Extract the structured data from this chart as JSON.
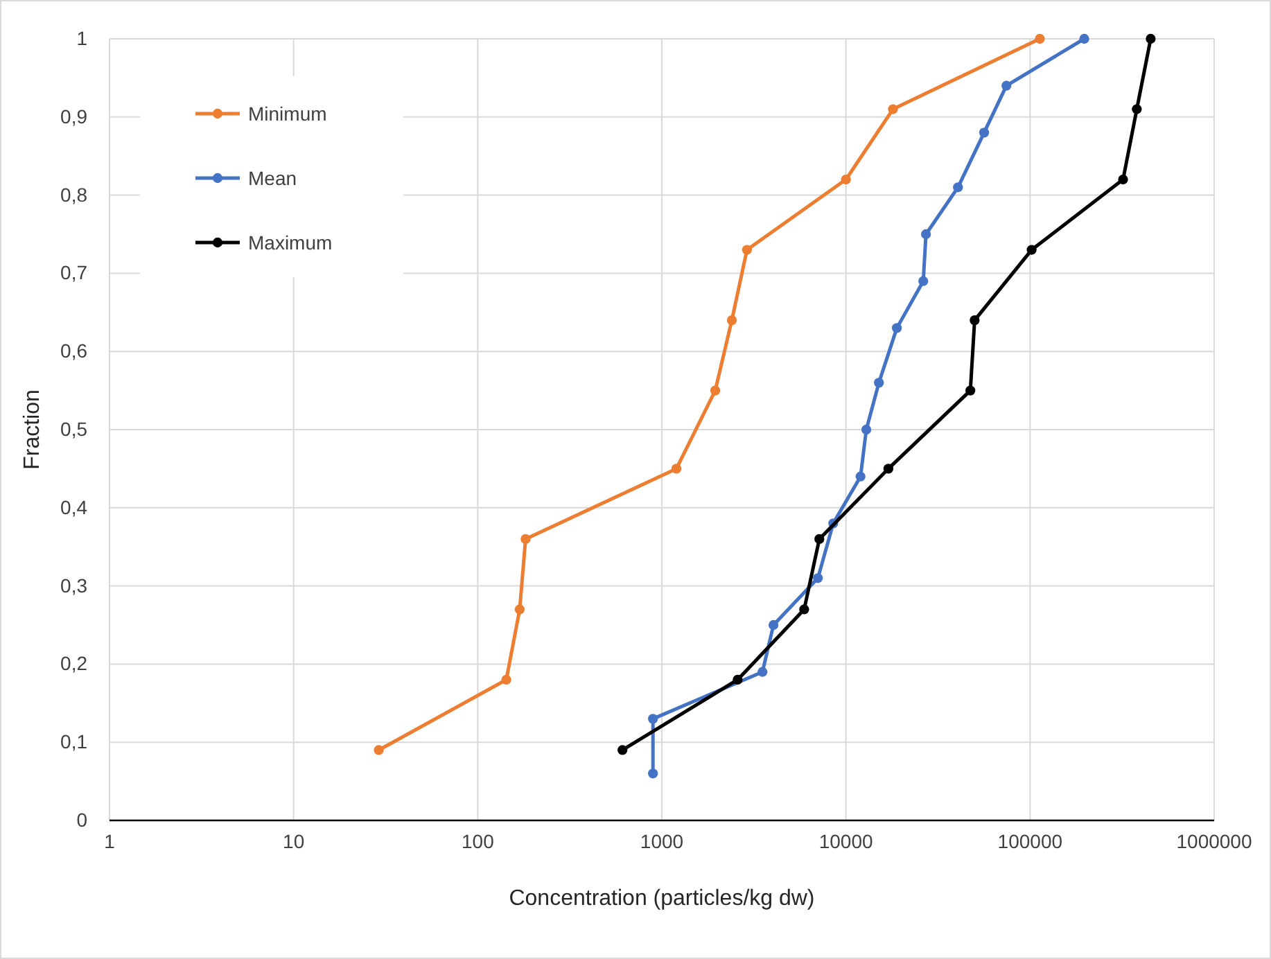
{
  "chart_data": {
    "type": "line",
    "xlabel": "Concentration (particles/kg dw)",
    "ylabel": "Fraction",
    "log": "x",
    "grid": true,
    "legend": "top left",
    "marker": "circle",
    "line_style": "solid",
    "xlim": [
      1,
      1000000
    ],
    "xticks": [
      1,
      10,
      100,
      1000,
      10000,
      100000,
      1000000
    ],
    "ylim": [
      0,
      1
    ],
    "yticks": [
      0,
      {
        "value": 0.1,
        "label": "0,1"
      },
      {
        "value": 0.2,
        "label": "0,2"
      },
      {
        "value": 0.3,
        "label": "0,3"
      },
      {
        "value": 0.4,
        "label": "0,4"
      },
      {
        "value": 0.5,
        "label": "0,5"
      },
      {
        "value": 0.6,
        "label": "0,6"
      },
      {
        "value": 0.7,
        "label": "0,7"
      },
      {
        "value": 0.8,
        "label": "0,8"
      },
      {
        "value": 0.9,
        "label": "0,9"
      },
      1
    ],
    "series": [
      {
        "name": "Minimum",
        "color": "#ed7d31",
        "x": [
          29,
          143,
          169,
          182,
          1200,
          1950,
          2400,
          2900,
          10000,
          18000,
          113000
        ],
        "values": [
          0.09,
          0.18,
          0.27,
          0.36,
          0.45,
          0.55,
          0.64,
          0.73,
          0.82,
          0.91,
          1
        ]
      },
      {
        "name": "Mean",
        "color": "#4472c4",
        "x": [
          895,
          895,
          3520,
          4040,
          7040,
          8530,
          12000,
          12900,
          15100,
          18900,
          26300,
          27200,
          40600,
          56300,
          74400,
          197000
        ],
        "values": [
          0.06,
          0.13,
          0.19,
          0.25,
          0.31,
          0.38,
          0.44,
          0.5,
          0.56,
          0.63,
          0.69,
          0.75,
          0.81,
          0.88,
          0.94,
          1
        ]
      },
      {
        "name": "Maximum",
        "color": "#000000",
        "x": [
          611,
          2580,
          5930,
          7170,
          17000,
          47400,
          50000,
          102000,
          320000,
          380000,
          452000
        ],
        "values": [
          0.09,
          0.18,
          0.27,
          0.36,
          0.45,
          0.55,
          0.64,
          0.73,
          0.82,
          0.91,
          1
        ]
      }
    ]
  }
}
